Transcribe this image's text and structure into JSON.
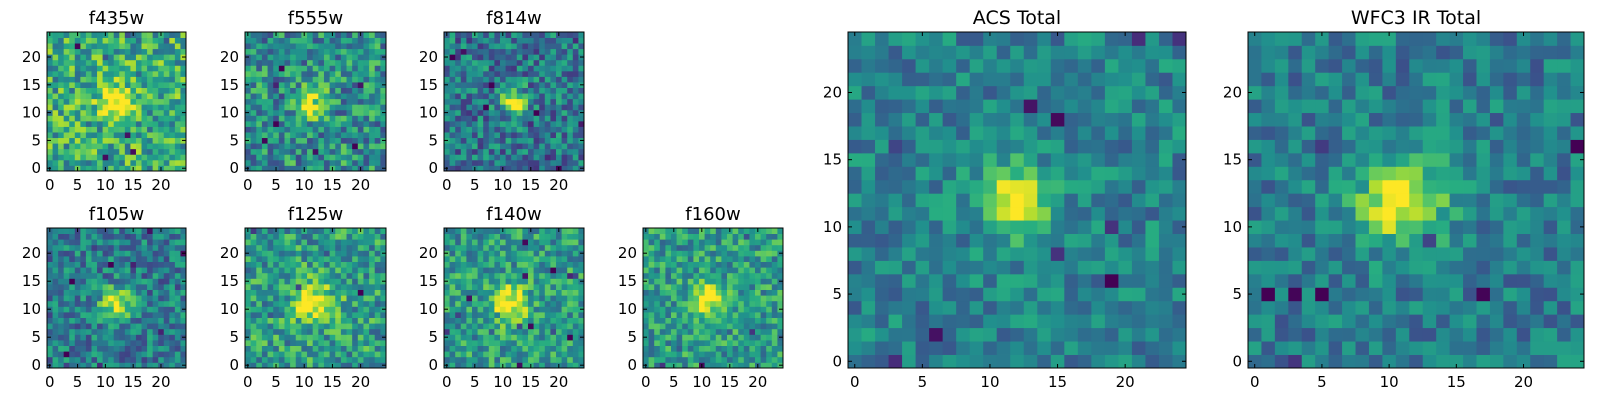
{
  "chart_data": [
    {
      "type": "heatmap",
      "title": "f435w",
      "grid_size": 25,
      "colormap": "viridis",
      "source": {
        "cx": 12,
        "cy": 12,
        "sigma": 2.0,
        "amp": 0.55
      },
      "noise": 0.55,
      "bg": 0.62,
      "seed": 11,
      "xticks": [
        0,
        5,
        10,
        15,
        20
      ],
      "yticks": [
        0,
        5,
        10,
        15,
        20
      ],
      "xlim": [
        0,
        24
      ],
      "ylim": [
        0,
        24
      ]
    },
    {
      "type": "heatmap",
      "title": "f555w",
      "grid_size": 25,
      "colormap": "viridis",
      "source": {
        "cx": 11,
        "cy": 12,
        "sigma": 1.8,
        "amp": 0.6
      },
      "noise": 0.55,
      "bg": 0.5,
      "seed": 23,
      "xticks": [
        0,
        5,
        10,
        15,
        20
      ],
      "yticks": [
        0,
        5,
        10,
        15,
        20
      ],
      "xlim": [
        0,
        24
      ],
      "ylim": [
        0,
        24
      ]
    },
    {
      "type": "heatmap",
      "title": "f814w",
      "grid_size": 25,
      "colormap": "viridis",
      "source": {
        "cx": 12,
        "cy": 12,
        "sigma": 1.6,
        "amp": 0.65
      },
      "noise": 0.5,
      "bg": 0.4,
      "seed": 37,
      "xticks": [
        0,
        5,
        10,
        15,
        20
      ],
      "yticks": [
        0,
        5,
        10,
        15,
        20
      ],
      "xlim": [
        0,
        24
      ],
      "ylim": [
        0,
        24
      ]
    },
    {
      "type": "heatmap",
      "title": "f105w",
      "grid_size": 25,
      "colormap": "viridis",
      "source": {
        "cx": 12,
        "cy": 11,
        "sigma": 2.0,
        "amp": 0.55
      },
      "noise": 0.45,
      "bg": 0.42,
      "seed": 41,
      "xticks": [
        0,
        5,
        10,
        15,
        20
      ],
      "yticks": [
        0,
        5,
        10,
        15,
        20
      ],
      "xlim": [
        0,
        24
      ],
      "ylim": [
        0,
        24
      ]
    },
    {
      "type": "heatmap",
      "title": "f125w",
      "grid_size": 25,
      "colormap": "viridis",
      "source": {
        "cx": 12,
        "cy": 11,
        "sigma": 2.6,
        "amp": 0.5
      },
      "noise": 0.5,
      "bg": 0.55,
      "seed": 53,
      "xticks": [
        0,
        5,
        10,
        15,
        20
      ],
      "yticks": [
        0,
        5,
        10,
        15,
        20
      ],
      "xlim": [
        0,
        24
      ],
      "ylim": [
        0,
        24
      ]
    },
    {
      "type": "heatmap",
      "title": "f140w",
      "grid_size": 25,
      "colormap": "viridis",
      "source": {
        "cx": 11,
        "cy": 11,
        "sigma": 2.2,
        "amp": 0.55
      },
      "noise": 0.45,
      "bg": 0.55,
      "seed": 67,
      "xticks": [
        0,
        5,
        10,
        15,
        20
      ],
      "yticks": [
        0,
        5,
        10,
        15,
        20
      ],
      "xlim": [
        0,
        24
      ],
      "ylim": [
        0,
        24
      ]
    },
    {
      "type": "heatmap",
      "title": "f160w",
      "grid_size": 25,
      "colormap": "viridis",
      "source": {
        "cx": 11,
        "cy": 12,
        "sigma": 2.0,
        "amp": 0.55
      },
      "noise": 0.45,
      "bg": 0.55,
      "seed": 79,
      "xticks": [
        0,
        5,
        10,
        15,
        20
      ],
      "yticks": [
        0,
        5,
        10,
        15,
        20
      ],
      "xlim": [
        0,
        24
      ],
      "ylim": [
        0,
        24
      ]
    },
    {
      "type": "heatmap",
      "title": "ACS Total",
      "grid_size": 25,
      "colormap": "viridis",
      "source": {
        "cx": 12,
        "cy": 12,
        "sigma": 1.7,
        "amp": 0.6
      },
      "noise": 0.35,
      "bg": 0.45,
      "seed": 91,
      "xticks": [
        0,
        5,
        10,
        15,
        20
      ],
      "yticks": [
        0,
        5,
        10,
        15,
        20
      ],
      "xlim": [
        0,
        24
      ],
      "ylim": [
        0,
        24
      ]
    },
    {
      "type": "heatmap",
      "title": "WFC3 IR Total",
      "grid_size": 25,
      "colormap": "viridis",
      "source": {
        "cx": 11,
        "cy": 12,
        "sigma": 2.3,
        "amp": 0.6
      },
      "noise": 0.35,
      "bg": 0.42,
      "seed": 103,
      "xticks": [
        0,
        5,
        10,
        15,
        20
      ],
      "yticks": [
        0,
        5,
        10,
        15,
        20
      ],
      "xlim": [
        0,
        24
      ],
      "ylim": [
        0,
        24
      ]
    }
  ]
}
